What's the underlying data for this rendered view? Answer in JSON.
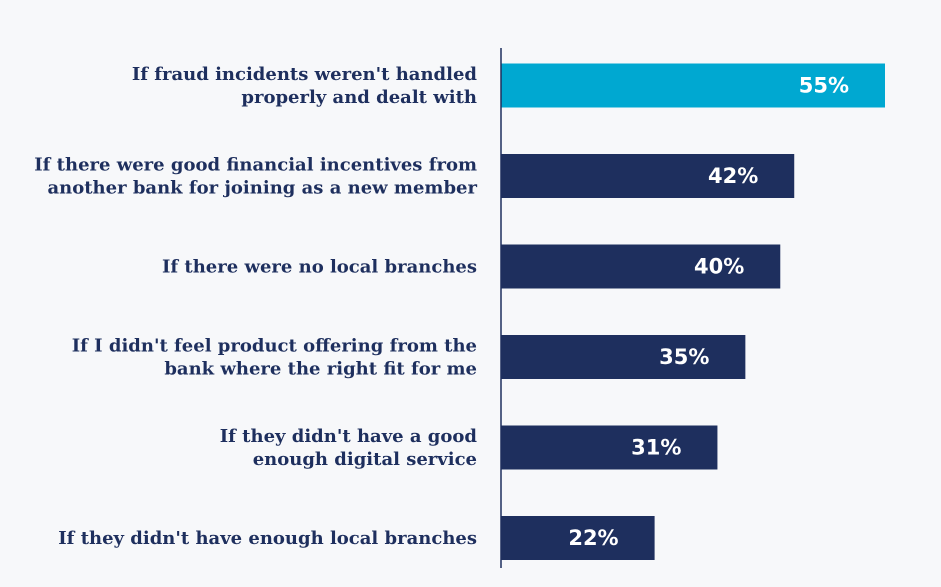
{
  "chart_data": {
    "type": "bar",
    "orientation": "horizontal",
    "categories": [
      [
        "If fraud incidents weren't handled",
        "properly and dealt with"
      ],
      [
        "If there were good financial incentives from",
        "another bank for joining as a new member"
      ],
      [
        "If there were no local branches"
      ],
      [
        "If I didn't feel product offering from the",
        "bank where the right fit for me"
      ],
      [
        "If they didn't have a good",
        "enough digital service"
      ],
      [
        "If they didn't have enough local branches"
      ]
    ],
    "values": [
      55,
      42,
      40,
      35,
      31,
      22
    ],
    "value_labels": [
      "55%",
      "42%",
      "40%",
      "35%",
      "31%",
      "22%"
    ],
    "unit": "%",
    "xlim": [
      0,
      55
    ],
    "grid": false,
    "legend": "none",
    "colors": {
      "highlight": "#00a8d1",
      "default": "#1e2f5e",
      "axis": "#1e2f5e",
      "value_text": "#ffffff",
      "background": "#f7f8fa"
    },
    "highlight_index": 0
  }
}
